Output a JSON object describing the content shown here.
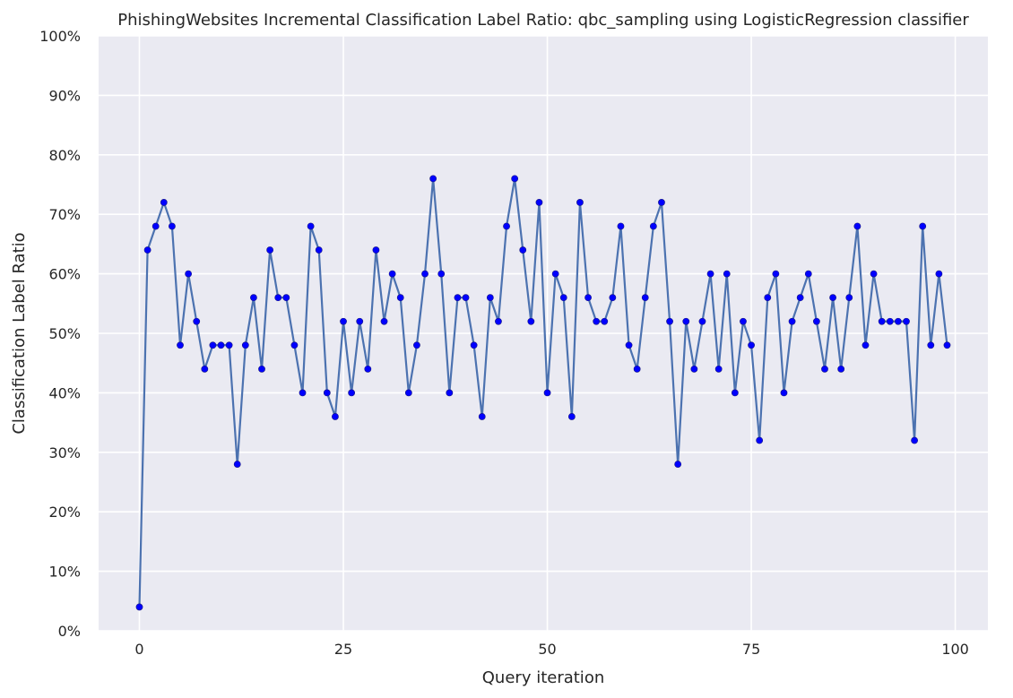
{
  "chart_data": {
    "type": "line",
    "title": "PhishingWebsites Incremental Classification Label Ratio: qbc_sampling using LogisticRegression classifier",
    "xlabel": "Query iteration",
    "ylabel": "Classification Label Ratio",
    "xlim": [
      -5,
      104
    ],
    "ylim": [
      0,
      100
    ],
    "x_ticks": [
      0,
      25,
      50,
      75,
      100
    ],
    "y_ticks": [
      "0%",
      "10%",
      "20%",
      "30%",
      "40%",
      "50%",
      "60%",
      "70%",
      "80%",
      "90%",
      "100%"
    ],
    "grid": true,
    "line_color": "#4c72b0",
    "marker_color": "#0000ff",
    "background_color": "#eaeaf2",
    "series": [
      {
        "x": [
          0,
          1,
          2,
          3,
          4,
          5,
          6,
          7,
          8,
          9,
          10,
          11,
          12,
          13,
          14,
          15,
          16,
          17,
          18,
          19,
          20,
          21,
          22,
          23,
          24,
          25,
          26,
          27,
          28,
          29,
          30,
          31,
          32,
          33,
          34,
          35,
          36,
          37,
          38,
          39,
          40,
          41,
          42,
          43,
          44,
          45,
          46,
          47,
          48,
          49,
          50,
          51,
          52,
          53,
          54,
          55,
          56,
          57,
          58,
          59,
          60,
          61,
          62,
          63,
          64,
          65,
          66,
          67,
          68,
          69,
          70,
          71,
          72,
          73,
          74,
          75,
          76,
          77,
          78,
          79,
          80,
          81,
          82,
          83,
          84,
          85,
          86,
          87,
          88,
          89,
          90,
          91,
          92,
          93,
          94,
          95,
          96,
          97,
          98,
          99
        ],
        "values": [
          4,
          64,
          68,
          72,
          68,
          48,
          60,
          52,
          44,
          48,
          48,
          48,
          28,
          48,
          56,
          44,
          64,
          56,
          56,
          48,
          40,
          68,
          64,
          40,
          36,
          52,
          40,
          52,
          44,
          64,
          52,
          60,
          56,
          40,
          48,
          60,
          76,
          60,
          40,
          56,
          56,
          48,
          36,
          56,
          52,
          68,
          76,
          64,
          52,
          72,
          40,
          60,
          56,
          36,
          72,
          56,
          52,
          52,
          56,
          68,
          48,
          44,
          56,
          68,
          72,
          52,
          28,
          52,
          44,
          52,
          60,
          44,
          60,
          40,
          52,
          48,
          32,
          56,
          60,
          40,
          52,
          56,
          60,
          52,
          44,
          56,
          44,
          56,
          68,
          48,
          60,
          52,
          52,
          52,
          52,
          32,
          68,
          48,
          60,
          48
        ]
      }
    ]
  }
}
